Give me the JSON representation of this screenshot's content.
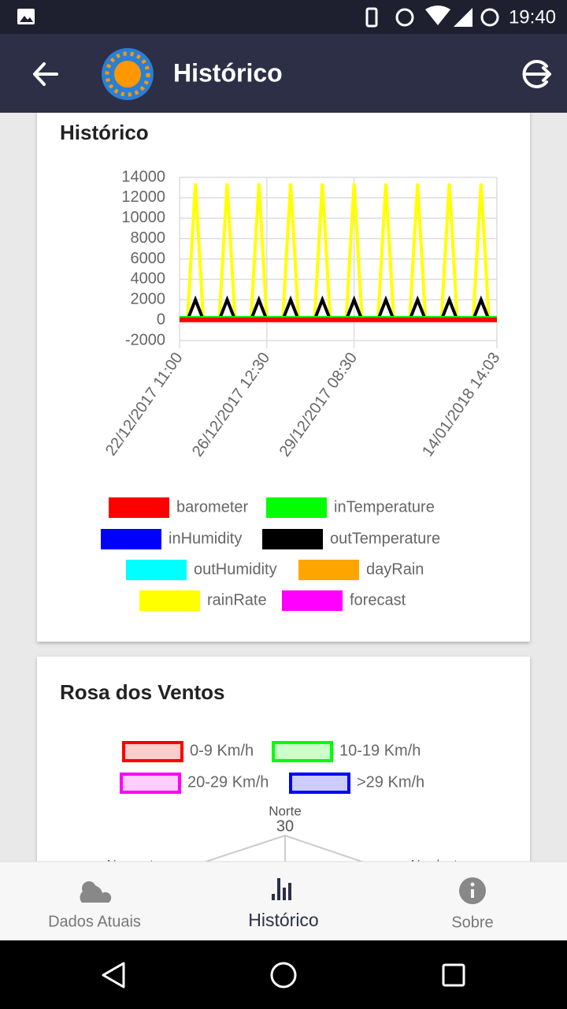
{
  "status_bar": {
    "time": "19:40"
  },
  "app_bar": {
    "title": "Histórico"
  },
  "chart_data": {
    "type": "line",
    "title": "Histórico",
    "categories": [
      "22/12/2017 11:00",
      null,
      null,
      null,
      null,
      null,
      null,
      null,
      null,
      null,
      null,
      "26/12/2017 12:30",
      null,
      null,
      null,
      null,
      null,
      null,
      null,
      null,
      null,
      null,
      "29/12/2017 08:30",
      null,
      null,
      null,
      null,
      null,
      null,
      null,
      null,
      null,
      null,
      null,
      null,
      null,
      null,
      null,
      null,
      null,
      "14/01/2018 14:03"
    ],
    "series": [
      {
        "name": "barometer",
        "color": "#ff0000",
        "values": [
          30,
          30,
          30,
          30,
          30,
          30,
          30,
          30,
          30,
          30,
          30,
          30,
          30,
          30,
          30,
          30,
          30,
          30,
          30,
          30,
          30,
          30,
          30,
          30,
          30,
          30,
          30,
          30,
          30,
          30,
          30,
          30,
          30,
          30,
          30,
          30,
          30,
          30,
          30,
          30,
          30
        ]
      },
      {
        "name": "inTemperature",
        "color": "#00ff00",
        "values": [
          250,
          250,
          250,
          250,
          250,
          250,
          250,
          250,
          250,
          250,
          250,
          250,
          250,
          250,
          250,
          250,
          250,
          250,
          250,
          250,
          250,
          250,
          250,
          250,
          250,
          250,
          250,
          250,
          250,
          250,
          250,
          250,
          250,
          250,
          250,
          250,
          250,
          250,
          250,
          250,
          250
        ]
      },
      {
        "name": "inHumidity",
        "color": "#0000ff",
        "values": [
          50,
          50,
          50,
          50,
          50,
          50,
          50,
          50,
          50,
          50,
          50,
          50,
          50,
          50,
          50,
          50,
          50,
          50,
          50,
          50,
          50,
          50,
          50,
          50,
          50,
          50,
          50,
          50,
          50,
          50,
          50,
          50,
          50,
          50,
          50,
          50,
          50,
          50,
          50,
          50,
          50
        ]
      },
      {
        "name": "outTemperature",
        "color": "#000000",
        "values": [
          20,
          20,
          2000,
          20,
          20,
          20,
          2000,
          20,
          20,
          20,
          2000,
          20,
          20,
          20,
          2000,
          20,
          20,
          20,
          2000,
          20,
          20,
          20,
          2000,
          20,
          20,
          20,
          2000,
          20,
          20,
          20,
          2000,
          20,
          20,
          20,
          2000,
          20,
          20,
          20,
          2000,
          20,
          20
        ]
      },
      {
        "name": "outHumidity",
        "color": "#00ffff",
        "values": [
          80,
          80,
          80,
          80,
          80,
          80,
          80,
          80,
          80,
          80,
          80,
          80,
          80,
          80,
          80,
          80,
          80,
          80,
          80,
          80,
          80,
          80,
          80,
          80,
          80,
          80,
          80,
          80,
          80,
          80,
          80,
          80,
          80,
          80,
          80,
          80,
          80,
          80,
          80,
          80,
          80
        ]
      },
      {
        "name": "dayRain",
        "color": "#ffa500",
        "values": [
          0,
          0,
          0,
          0,
          0,
          0,
          0,
          0,
          0,
          0,
          0,
          0,
          0,
          0,
          0,
          0,
          0,
          0,
          0,
          0,
          0,
          0,
          0,
          0,
          0,
          0,
          0,
          0,
          0,
          0,
          0,
          0,
          0,
          0,
          0,
          0,
          0,
          0,
          0,
          0,
          0
        ]
      },
      {
        "name": "rainRate",
        "color": "#ffff00",
        "values": [
          0,
          0,
          13400,
          0,
          0,
          0,
          13400,
          0,
          0,
          0,
          13400,
          0,
          0,
          0,
          13400,
          0,
          0,
          0,
          13400,
          0,
          0,
          0,
          13400,
          0,
          0,
          0,
          13400,
          0,
          0,
          0,
          13400,
          0,
          0,
          0,
          13400,
          0,
          0,
          0,
          13400,
          0,
          0
        ]
      },
      {
        "name": "forecast",
        "color": "#ff00ff",
        "values": [
          0,
          0,
          0,
          0,
          0,
          0,
          0,
          0,
          0,
          0,
          0,
          0,
          0,
          0,
          0,
          0,
          0,
          0,
          0,
          0,
          0,
          0,
          0,
          0,
          0,
          0,
          0,
          0,
          0,
          0,
          0,
          0,
          0,
          0,
          0,
          0,
          0,
          0,
          0,
          0,
          0
        ]
      }
    ],
    "ylim": [
      -2000,
      14000
    ],
    "yticks": [
      -2000,
      0,
      2000,
      4000,
      6000,
      8000,
      10000,
      12000,
      14000
    ],
    "grid": true
  },
  "wind_rose": {
    "title": "Rosa dos Ventos",
    "legend": [
      {
        "name": "0-9 Km/h",
        "color": "#ff0000",
        "fill": "#ffcccc"
      },
      {
        "name": "10-19 Km/h",
        "color": "#00ff00",
        "fill": "#ccffcc"
      },
      {
        "name": "20-29 Km/h",
        "color": "#ff00ff",
        "fill": "#ffccff"
      },
      {
        "name": ">29 Km/h",
        "color": "#0000ff",
        "fill": "#ccccff"
      }
    ],
    "labels": {
      "north": "Norte",
      "northwest": "Noroeste",
      "northeast": "Nordeste"
    },
    "tick": 30
  },
  "bottom_nav": {
    "items": [
      "Dados Atuais",
      "Histórico",
      "Sobre"
    ],
    "active": 1
  }
}
